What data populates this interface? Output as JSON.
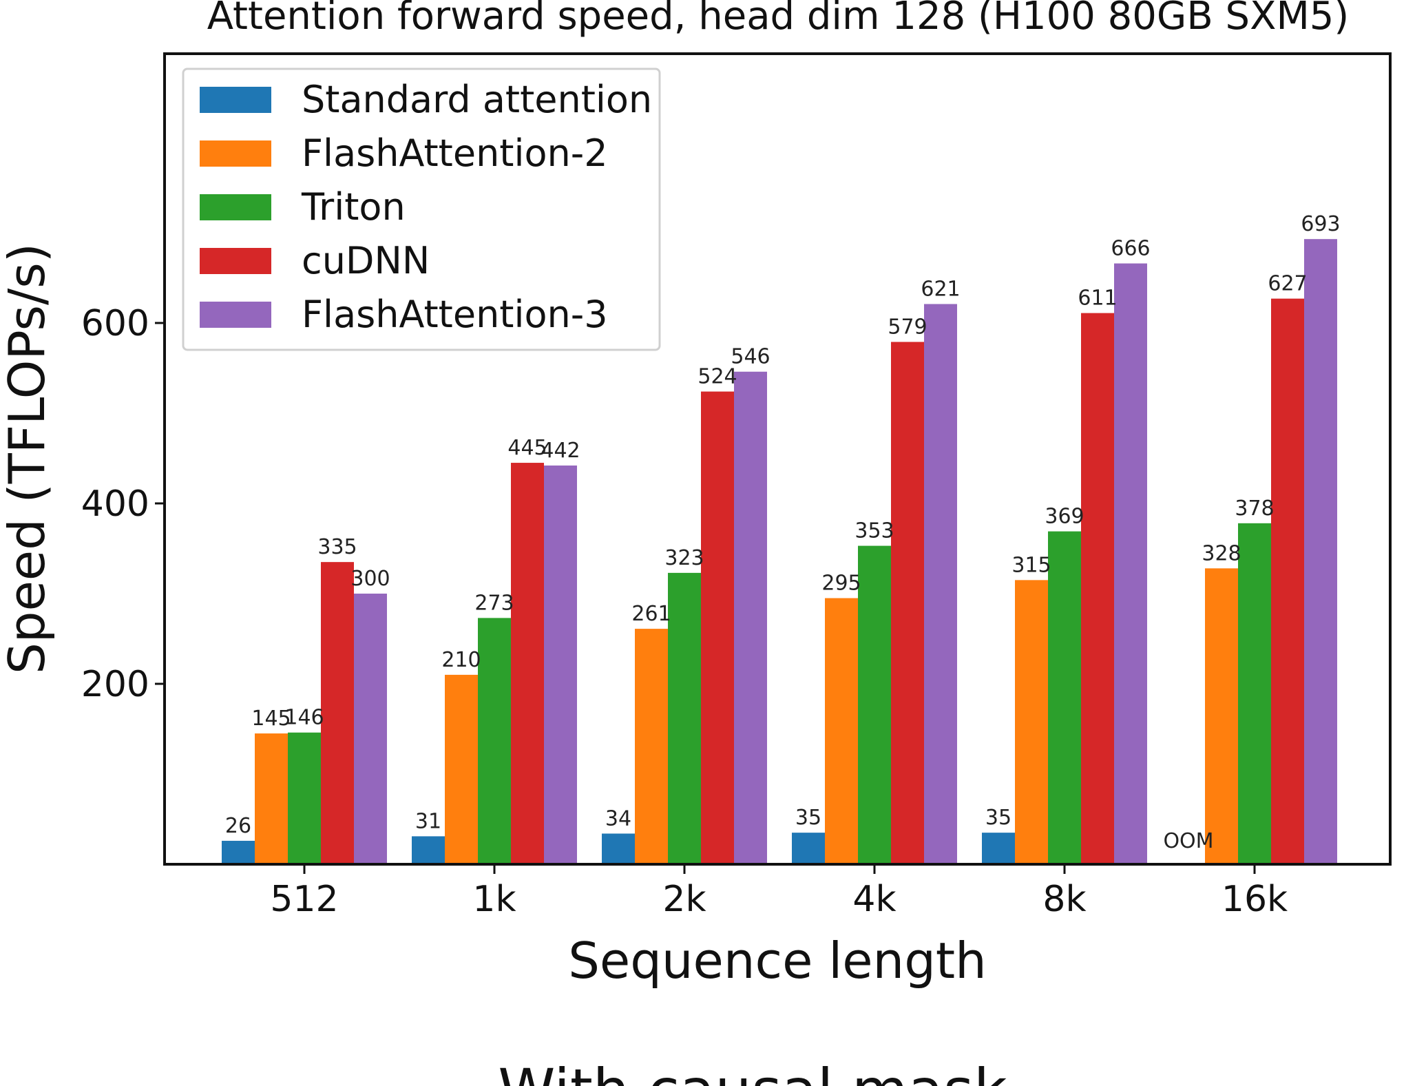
{
  "chart_data": {
    "type": "bar",
    "title": "Attention forward speed, head dim 128 (H100 80GB SXM5)",
    "xlabel": "Sequence length",
    "ylabel": "Speed (TFLOPs/s)",
    "caption": "With causal mask",
    "categories": [
      "512",
      "1k",
      "2k",
      "4k",
      "8k",
      "16k"
    ],
    "ylim": [
      0,
      760
    ],
    "yticks": [
      200,
      400,
      600
    ],
    "grid": false,
    "legend_position": "top-left",
    "series": [
      {
        "name": "Standard attention",
        "color": "#1f77b4",
        "values": [
          26,
          31,
          34,
          35,
          35,
          null
        ],
        "labels": [
          "26",
          "31",
          "34",
          "35",
          "35",
          "OOM"
        ]
      },
      {
        "name": "FlashAttention-2",
        "color": "#ff7f0e",
        "values": [
          145,
          210,
          261,
          295,
          315,
          328
        ],
        "labels": [
          "145",
          "210",
          "261",
          "295",
          "315",
          "328"
        ]
      },
      {
        "name": "Triton",
        "color": "#2ca02c",
        "values": [
          146,
          273,
          323,
          353,
          369,
          378
        ],
        "labels": [
          "146",
          "273",
          "323",
          "353",
          "369",
          "378"
        ]
      },
      {
        "name": "cuDNN",
        "color": "#d62728",
        "values": [
          335,
          445,
          524,
          579,
          611,
          627
        ],
        "labels": [
          "335",
          "445",
          "524",
          "579",
          "611",
          "627"
        ]
      },
      {
        "name": "FlashAttention-3",
        "color": "#9467bd",
        "values": [
          300,
          442,
          546,
          621,
          666,
          693
        ],
        "labels": [
          "300",
          "442",
          "546",
          "621",
          "666",
          "693"
        ]
      }
    ]
  }
}
